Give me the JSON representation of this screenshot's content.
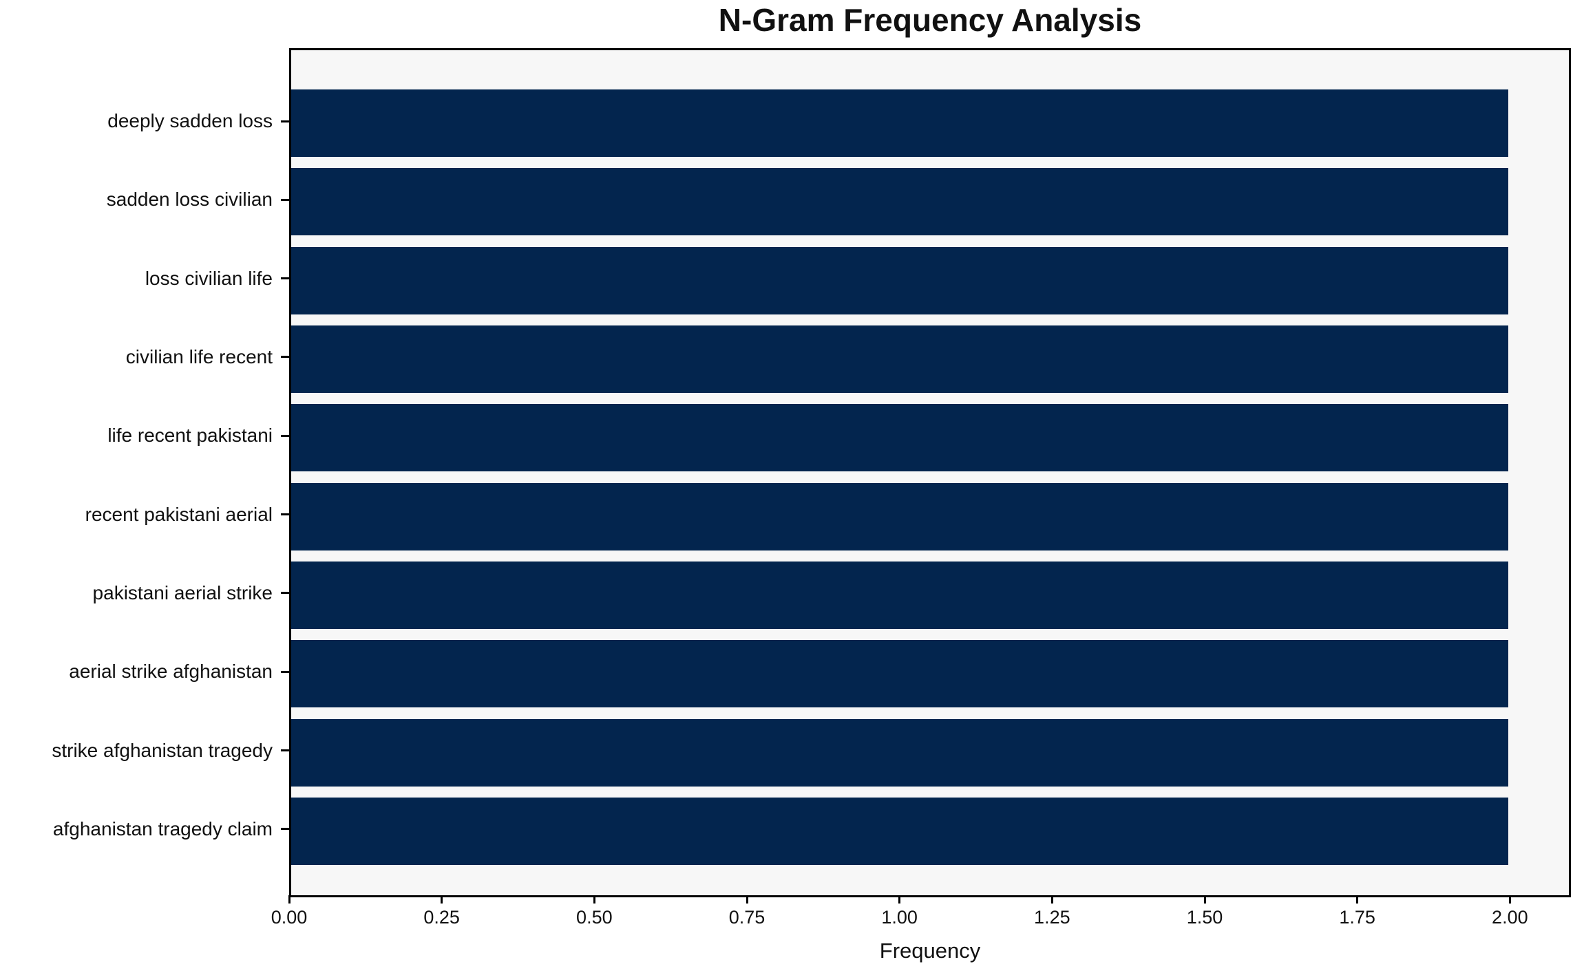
{
  "chart_data": {
    "type": "bar",
    "orientation": "horizontal",
    "title": "N-Gram Frequency Analysis",
    "xlabel": "Frequency",
    "ylabel": "",
    "categories": [
      "deeply sadden loss",
      "sadden loss civilian",
      "loss civilian life",
      "civilian life recent",
      "life recent pakistani",
      "recent pakistani aerial",
      "pakistani aerial strike",
      "aerial strike afghanistan",
      "strike afghanistan tragedy",
      "afghanistan tragedy claim"
    ],
    "values": [
      2,
      2,
      2,
      2,
      2,
      2,
      2,
      2,
      2,
      2
    ],
    "xlim": [
      0,
      2.1
    ],
    "xticks": [
      0,
      0.25,
      0.5,
      0.75,
      1.0,
      1.25,
      1.5,
      1.75,
      2.0
    ],
    "xtick_labels": [
      "0.00",
      "0.25",
      "0.50",
      "0.75",
      "1.00",
      "1.25",
      "1.50",
      "1.75",
      "2.00"
    ],
    "grid": false,
    "legend_position": "none",
    "colors": {
      "bar": "#03254e",
      "plot_background": "#f7f7f7",
      "figure_background": "#ffffff",
      "spine": "#000000",
      "text": "#111111"
    }
  }
}
